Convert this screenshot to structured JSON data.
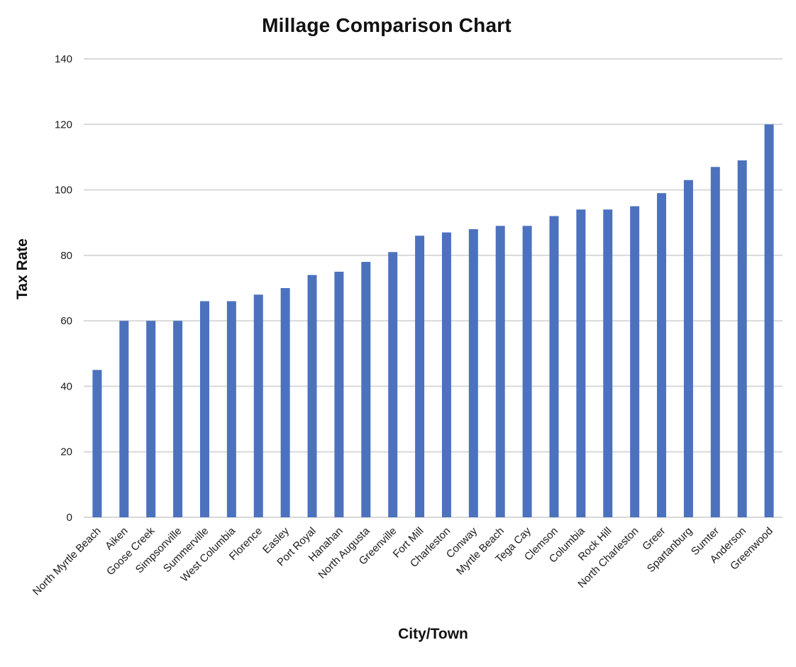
{
  "chart_data": {
    "type": "bar",
    "title": "Millage Comparison Chart",
    "xlabel": "City/Town",
    "ylabel": "Tax Rate",
    "ylim": [
      0,
      140
    ],
    "ytick_step": 20,
    "yticks": [
      0,
      20,
      40,
      60,
      80,
      100,
      120,
      140
    ],
    "grid": true,
    "legend": false,
    "bar_color": "#4C72BE",
    "gridline_color": "#D9D9D9",
    "axis_line_color": "#D9D9D9",
    "categories": [
      "North Myrtle Beach",
      "Aiken",
      "Goose Creek",
      "Simpsonville",
      "Summerville",
      "West Columbia",
      "Florence",
      "Easley",
      "Port Royal",
      "Hanahan",
      "North Augusta",
      "Greenville",
      "Fort Mill",
      "Charleston",
      "Conway",
      "Myrtle Beach",
      "Tega Cay",
      "Clemson",
      "Columbia",
      "Rock Hill",
      "North Charleston",
      "Greer",
      "Spartanburg",
      "Sumter",
      "Anderson",
      "Greenwood"
    ],
    "values": [
      45,
      60,
      60,
      60,
      66,
      66,
      68,
      70,
      74,
      75,
      78,
      81,
      86,
      87,
      88,
      89,
      89,
      92,
      94,
      94,
      95,
      99,
      103,
      107,
      109,
      120
    ]
  }
}
